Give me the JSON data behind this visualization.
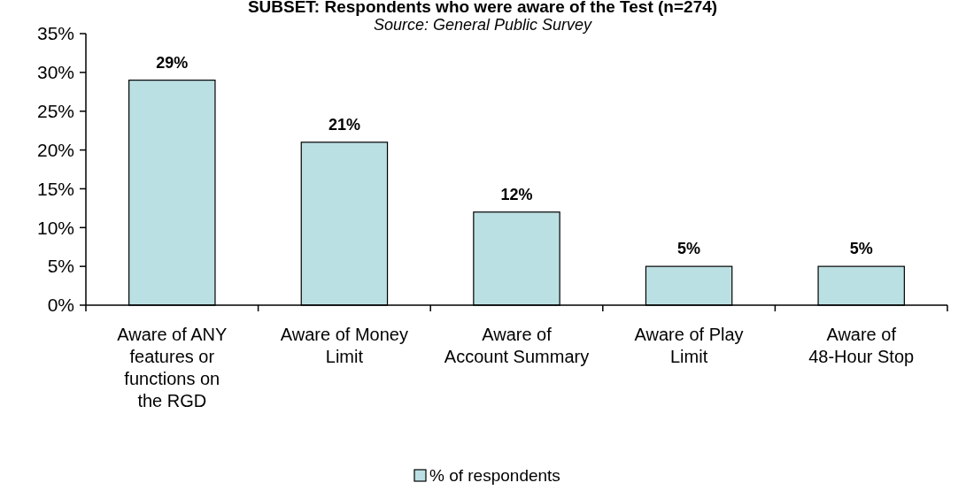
{
  "chart_data": {
    "type": "bar",
    "title": "SUBSET: Respondents who were aware of the Test (n=274)",
    "subtitle": "Source: General Public Survey",
    "categories": [
      "Aware of ANY features or functions on the RGD",
      "Aware of Money Limit",
      "Aware of Account Summary",
      "Aware of Play Limit",
      "Aware of 48-Hour Stop"
    ],
    "series": [
      {
        "name": "% of respondents",
        "color": "#bbe0e3",
        "values": [
          29,
          21,
          12,
          5,
          5
        ]
      }
    ],
    "value_labels": [
      "29%",
      "21%",
      "12%",
      "5%",
      "5%"
    ],
    "ylim": [
      0,
      35
    ],
    "yticks": [
      {
        "value": 0,
        "label": "0%"
      },
      {
        "value": 5,
        "label": "5%"
      },
      {
        "value": 10,
        "label": "10%"
      },
      {
        "value": 15,
        "label": "15%"
      },
      {
        "value": 20,
        "label": "20%"
      },
      {
        "value": 25,
        "label": "25%"
      },
      {
        "value": 30,
        "label": "30%"
      },
      {
        "value": 35,
        "label": "35%"
      }
    ],
    "grid": false,
    "legend": "bottom"
  }
}
